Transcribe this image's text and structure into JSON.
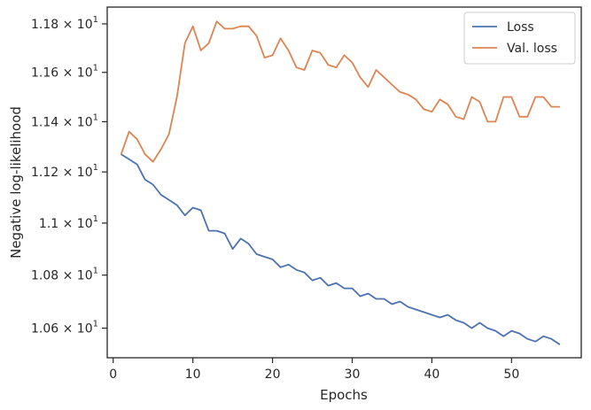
{
  "chart_data": {
    "type": "line",
    "title": "",
    "xlabel": "Epochs",
    "ylabel": "Negative log-likelihood",
    "xlim": [
      -0.75,
      58.75
    ],
    "ylim": [
      10.49,
      11.87
    ],
    "y_scale": "log",
    "grid": false,
    "legend_position": "top-right",
    "x_ticks": [
      {
        "value": 0,
        "label": "0"
      },
      {
        "value": 10,
        "label": "10"
      },
      {
        "value": 20,
        "label": "20"
      },
      {
        "value": 30,
        "label": "30"
      },
      {
        "value": 40,
        "label": "40"
      },
      {
        "value": 50,
        "label": "50"
      }
    ],
    "y_ticks": [
      {
        "value": 10.6,
        "mantissa": "1.06",
        "base": "10",
        "exp": "1"
      },
      {
        "value": 10.8,
        "mantissa": "1.08",
        "base": "10",
        "exp": "1"
      },
      {
        "value": 11.0,
        "mantissa": "1.1",
        "base": "10",
        "exp": "1"
      },
      {
        "value": 11.2,
        "mantissa": "1.12",
        "base": "10",
        "exp": "1"
      },
      {
        "value": 11.4,
        "mantissa": "1.14",
        "base": "10",
        "exp": "1"
      },
      {
        "value": 11.6,
        "mantissa": "1.16",
        "base": "10",
        "exp": "1"
      },
      {
        "value": 11.8,
        "mantissa": "1.18",
        "base": "10",
        "exp": "1"
      }
    ],
    "x": [
      1,
      2,
      3,
      4,
      5,
      6,
      7,
      8,
      9,
      10,
      11,
      12,
      13,
      14,
      15,
      16,
      17,
      18,
      19,
      20,
      21,
      22,
      23,
      24,
      25,
      26,
      27,
      28,
      29,
      30,
      31,
      32,
      33,
      34,
      35,
      36,
      37,
      38,
      39,
      40,
      41,
      42,
      43,
      44,
      45,
      46,
      47,
      48,
      49,
      50,
      51,
      52,
      53,
      54,
      55,
      56
    ],
    "series": [
      {
        "name": "Loss",
        "color": "#4c72b0",
        "values": [
          11.27,
          11.25,
          11.23,
          11.17,
          11.15,
          11.11,
          11.09,
          11.07,
          11.03,
          11.06,
          11.05,
          10.97,
          10.97,
          10.96,
          10.9,
          10.94,
          10.92,
          10.88,
          10.87,
          10.86,
          10.83,
          10.84,
          10.82,
          10.81,
          10.78,
          10.79,
          10.76,
          10.77,
          10.75,
          10.75,
          10.72,
          10.73,
          10.71,
          10.71,
          10.69,
          10.7,
          10.68,
          10.67,
          10.66,
          10.65,
          10.64,
          10.65,
          10.63,
          10.62,
          10.6,
          10.62,
          10.6,
          10.59,
          10.57,
          10.59,
          10.58,
          10.56,
          10.55,
          10.57,
          10.56,
          10.54
        ]
      },
      {
        "name": "Val. loss",
        "color": "#dd8452",
        "values": [
          11.27,
          11.36,
          11.33,
          11.27,
          11.24,
          11.29,
          11.35,
          11.5,
          11.72,
          11.79,
          11.69,
          11.72,
          11.81,
          11.78,
          11.78,
          11.79,
          11.79,
          11.75,
          11.66,
          11.67,
          11.74,
          11.69,
          11.62,
          11.61,
          11.69,
          11.68,
          11.63,
          11.62,
          11.67,
          11.64,
          11.58,
          11.54,
          11.61,
          11.58,
          11.55,
          11.52,
          11.51,
          11.49,
          11.45,
          11.44,
          11.49,
          11.47,
          11.42,
          11.41,
          11.5,
          11.48,
          11.4,
          11.4,
          11.5,
          11.5,
          11.42,
          11.42,
          11.5,
          11.5,
          11.46,
          11.46
        ]
      }
    ]
  }
}
